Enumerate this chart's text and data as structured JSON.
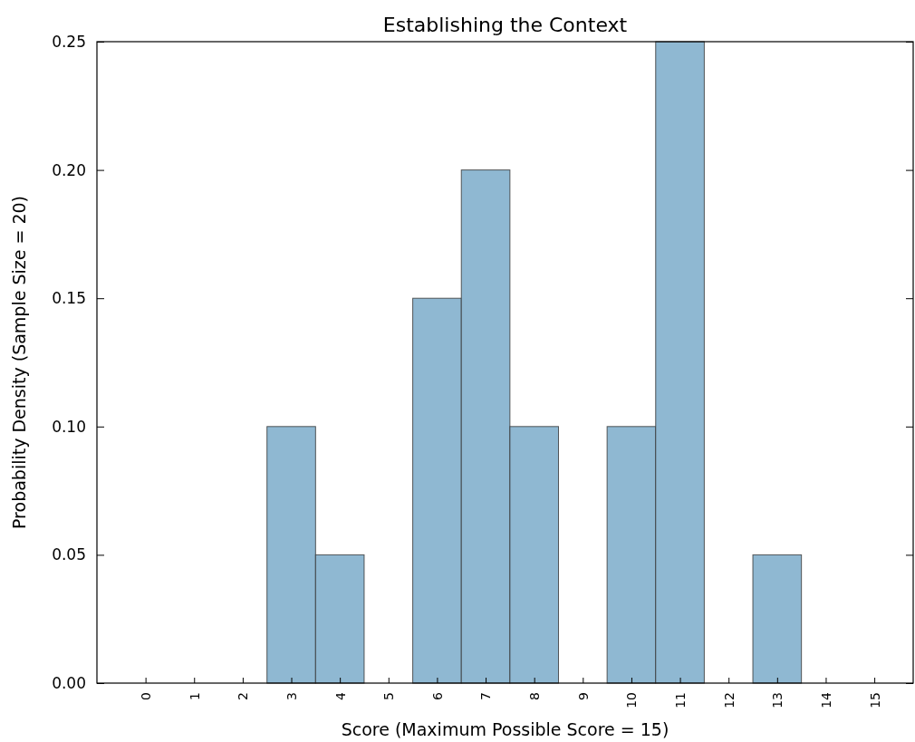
{
  "chart_data": {
    "type": "histogram",
    "title": "Establishing the Context",
    "xlabel": "Score (Maximum Possible Score = 15)",
    "ylabel": "Probability Density (Sample Size = 20)",
    "bins": [
      -0.5,
      0.5,
      1.5,
      2.5,
      3.5,
      4.5,
      5.5,
      6.5,
      7.5,
      8.5,
      9.5,
      10.5,
      11.5,
      12.5,
      13.5,
      14.5,
      15.5
    ],
    "values": [
      0,
      0,
      0,
      0.1,
      0.05,
      0,
      0.15,
      0.2,
      0.1,
      0,
      0.1,
      0.25,
      0,
      0.05,
      0,
      0
    ],
    "color": "#8fb8d2",
    "xlim": [
      -1,
      15.8
    ],
    "xticks": [
      0,
      1,
      2,
      3,
      4,
      5,
      6,
      7,
      8,
      9,
      10,
      11,
      12,
      13,
      14,
      15
    ],
    "ylim": [
      0,
      0.25
    ],
    "yticks": [
      {
        "value": 0,
        "label": "0.00"
      },
      {
        "value": 0.05,
        "label": "0.05"
      },
      {
        "value": 0.1,
        "label": "0.10"
      },
      {
        "value": 0.15,
        "label": "0.15"
      },
      {
        "value": 0.2,
        "label": "0.20"
      },
      {
        "value": 0.25,
        "label": "0.25"
      }
    ],
    "grid": false
  }
}
